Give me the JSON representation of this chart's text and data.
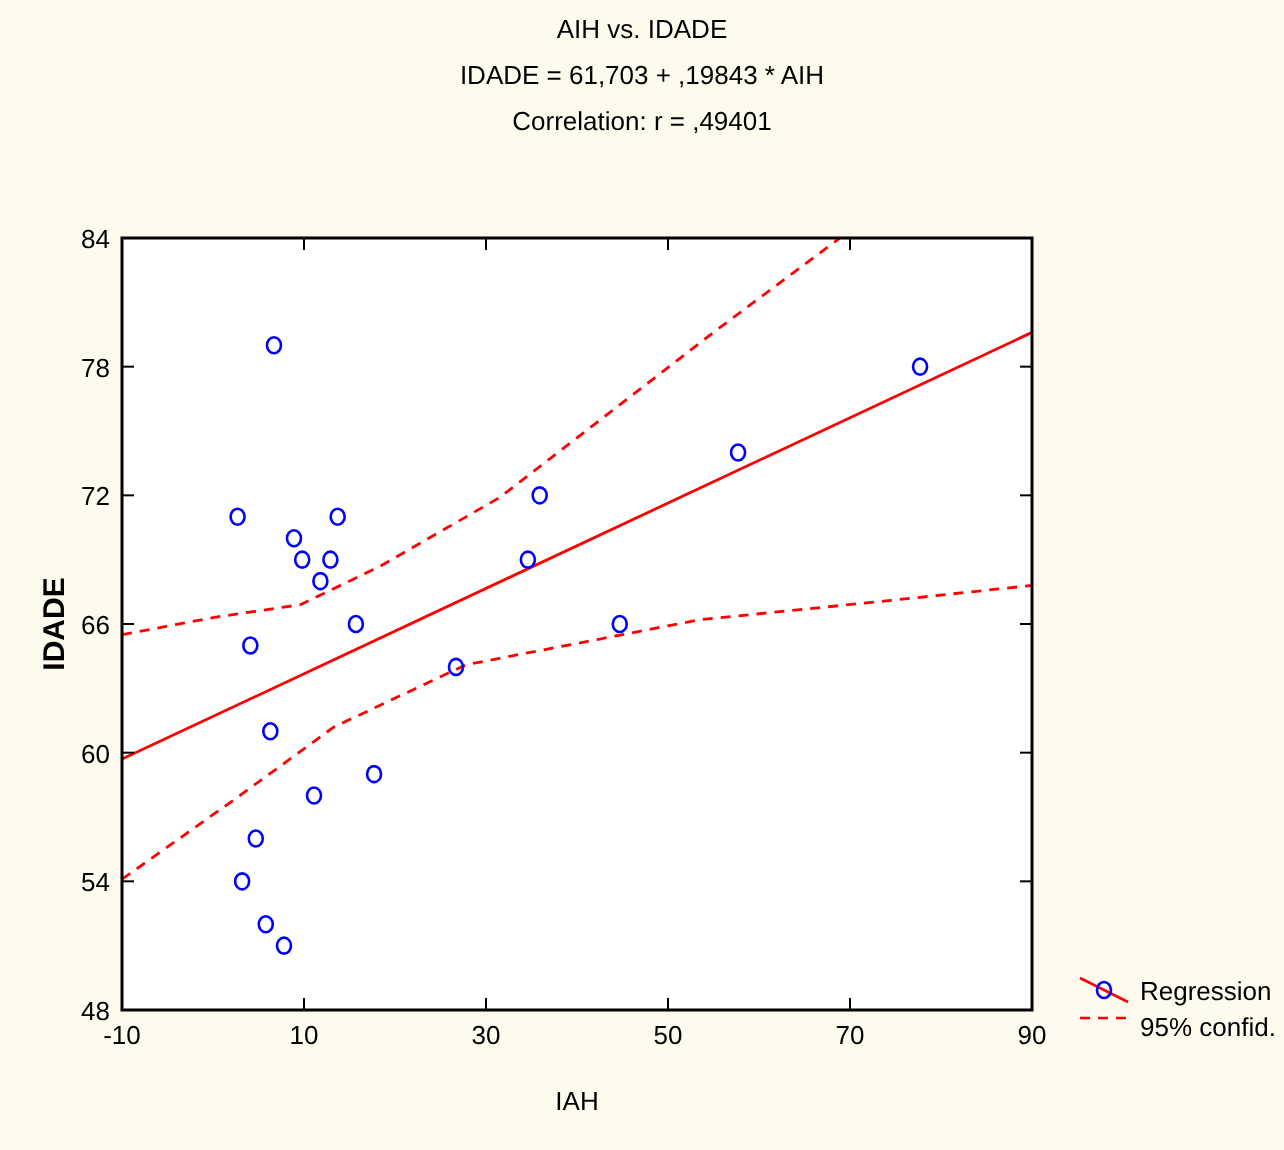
{
  "chart_data": {
    "type": "scatter",
    "title": "AIH vs. IDADE",
    "subtitle": "IDADE = 61,703 + ,19843 * AIH",
    "annotations": [
      "Correlation: r = ,49401"
    ],
    "xlabel": "IAH",
    "ylabel": "IDADE",
    "xlim": [
      -10,
      90
    ],
    "xticks": [
      -10,
      10,
      30,
      50,
      70,
      90
    ],
    "ylim": [
      48,
      84
    ],
    "yticks": [
      48,
      54,
      60,
      66,
      72,
      78,
      84
    ],
    "grid": false,
    "legend": "right",
    "series": [
      {
        "marker": "circle",
        "color": "#0000ff",
        "x": [
          6.7,
          2.7,
          8.9,
          9.8,
          12.9,
          13.7,
          11.8,
          4.1,
          15.7,
          6.3,
          11.1,
          17.7,
          4.7,
          3.2,
          5.8,
          7.8,
          26.7,
          34.6,
          35.9,
          44.7,
          57.7,
          77.7
        ],
        "values": [
          79,
          71,
          70,
          69,
          69,
          71,
          68,
          65,
          66,
          61,
          58,
          59,
          56,
          54,
          52,
          51,
          64,
          69,
          72,
          66,
          74,
          78
        ]
      },
      {
        "type": "line",
        "name": "Regression",
        "color": "#ff0000",
        "line_style": "solid",
        "marker": "none",
        "x": [
          -10,
          90
        ],
        "values": [
          59.7,
          79.6
        ]
      },
      {
        "type": "line",
        "name": "95% confid.",
        "color": "#ff0000",
        "line_style": "dashed",
        "marker": "none",
        "x": [
          -10,
          0,
          9.6,
          18.4,
          31.5,
          42.5,
          55,
          68.9
        ],
        "values": [
          65.5,
          66.3,
          66.9,
          68.7,
          71.9,
          75.5,
          79.6,
          84
        ]
      },
      {
        "type": "line",
        "color": "#ff0000",
        "line_style": "dashed",
        "marker": "none",
        "x": [
          -10,
          2.3,
          13.3,
          27.8,
          42.5,
          53.5,
          74.5,
          90
        ],
        "values": [
          54.1,
          57.8,
          61.2,
          64.1,
          65.3,
          66.2,
          67.1,
          67.8
        ]
      }
    ]
  }
}
